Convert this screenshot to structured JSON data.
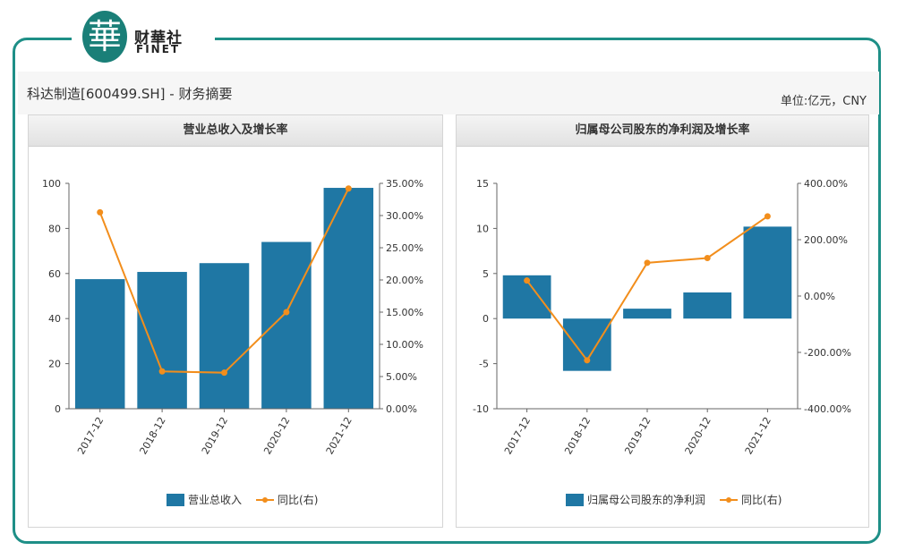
{
  "brand": {
    "mark": "華",
    "cn": "财華社",
    "en": "FINET"
  },
  "page": {
    "title": "科达制造[600499.SH] - 财务摘要",
    "unit": "单位:亿元，CNY"
  },
  "colors": {
    "bar": "#1f77a4",
    "line": "#f28e1c",
    "accent": "#1e8f87"
  },
  "chart_data": [
    {
      "type": "bar",
      "title": "营业总收入及增长率",
      "categories": [
        "2017-12",
        "2018-12",
        "2019-12",
        "2020-12",
        "2021-12"
      ],
      "ylim": [
        0,
        100
      ],
      "yticks": [
        "0",
        "20",
        "40",
        "60",
        "80",
        "100"
      ],
      "y2lim": [
        0,
        35
      ],
      "y2ticks": [
        "0.00%",
        "5.00%",
        "10.00%",
        "15.00%",
        "20.00%",
        "25.00%",
        "30.00%",
        "35.00%"
      ],
      "series": [
        {
          "name": "营业总收入",
          "type": "bar",
          "axis": "left",
          "values": [
            57.5,
            60.7,
            64.6,
            74.0,
            98.0
          ]
        },
        {
          "name": "同比(右)",
          "type": "line",
          "axis": "right",
          "values": [
            30.5,
            5.8,
            5.6,
            15.0,
            34.2
          ]
        }
      ]
    },
    {
      "type": "bar",
      "title": "归属母公司股东的净利润及增长率",
      "categories": [
        "2017-12",
        "2018-12",
        "2019-12",
        "2020-12",
        "2021-12"
      ],
      "ylim": [
        -10,
        15
      ],
      "yticks": [
        "-10",
        "-5",
        "0",
        "5",
        "10",
        "15"
      ],
      "y2lim": [
        -400,
        400
      ],
      "y2ticks": [
        "-400.00%",
        "-200.00%",
        "0.00%",
        "200.00%",
        "400.00%"
      ],
      "series": [
        {
          "name": "归属母公司股东的净利润",
          "type": "bar",
          "axis": "left",
          "values": [
            4.8,
            -5.8,
            1.1,
            2.9,
            10.2
          ]
        },
        {
          "name": "同比(右)",
          "type": "line",
          "axis": "right",
          "values": [
            55,
            -228,
            118,
            135,
            283
          ]
        }
      ]
    }
  ]
}
